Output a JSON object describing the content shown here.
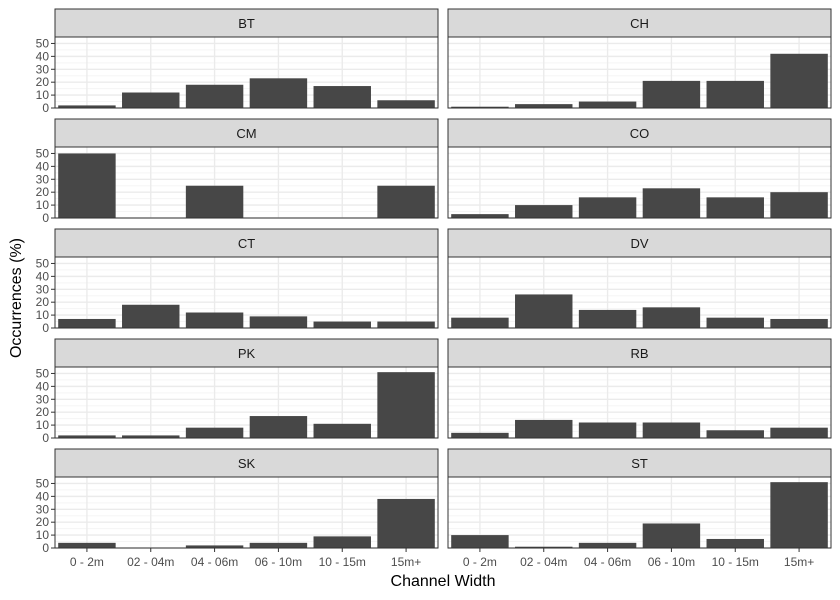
{
  "chart_data": {
    "type": "bar",
    "layout": "facet-grid",
    "xlabel": "Channel Width",
    "ylabel": "Occurrences (%)",
    "ylim": [
      0,
      55
    ],
    "yticks": [
      0,
      10,
      20,
      30,
      40,
      50
    ],
    "grid": true,
    "bar_color": "#474747",
    "panel_fill": "#ffffff",
    "strip_fill": "#d9d9d9",
    "grid_major_color": "#ebebeb",
    "grid_minor_color": "#f5f5f5",
    "categories": [
      "0 - 2m",
      "02 - 04m",
      "04 - 06m",
      "06 - 10m",
      "10 - 15m",
      "15m+"
    ],
    "facets": [
      {
        "name": "BT",
        "values": [
          2,
          12,
          18,
          23,
          17,
          6
        ]
      },
      {
        "name": "CH",
        "values": [
          1,
          3,
          5,
          21,
          21,
          42
        ]
      },
      {
        "name": "CM",
        "values": [
          50,
          0,
          25,
          0,
          0,
          25
        ]
      },
      {
        "name": "CO",
        "values": [
          3,
          10,
          16,
          23,
          16,
          20
        ]
      },
      {
        "name": "CT",
        "values": [
          7,
          18,
          12,
          9,
          5,
          5
        ]
      },
      {
        "name": "DV",
        "values": [
          8,
          26,
          14,
          16,
          8,
          7
        ]
      },
      {
        "name": "PK",
        "values": [
          2,
          2,
          8,
          17,
          11,
          51
        ]
      },
      {
        "name": "RB",
        "values": [
          4,
          14,
          12,
          12,
          6,
          8
        ]
      },
      {
        "name": "SK",
        "values": [
          4,
          0,
          2,
          4,
          9,
          38
        ]
      },
      {
        "name": "ST",
        "values": [
          10,
          1,
          4,
          19,
          7,
          51
        ]
      }
    ]
  }
}
